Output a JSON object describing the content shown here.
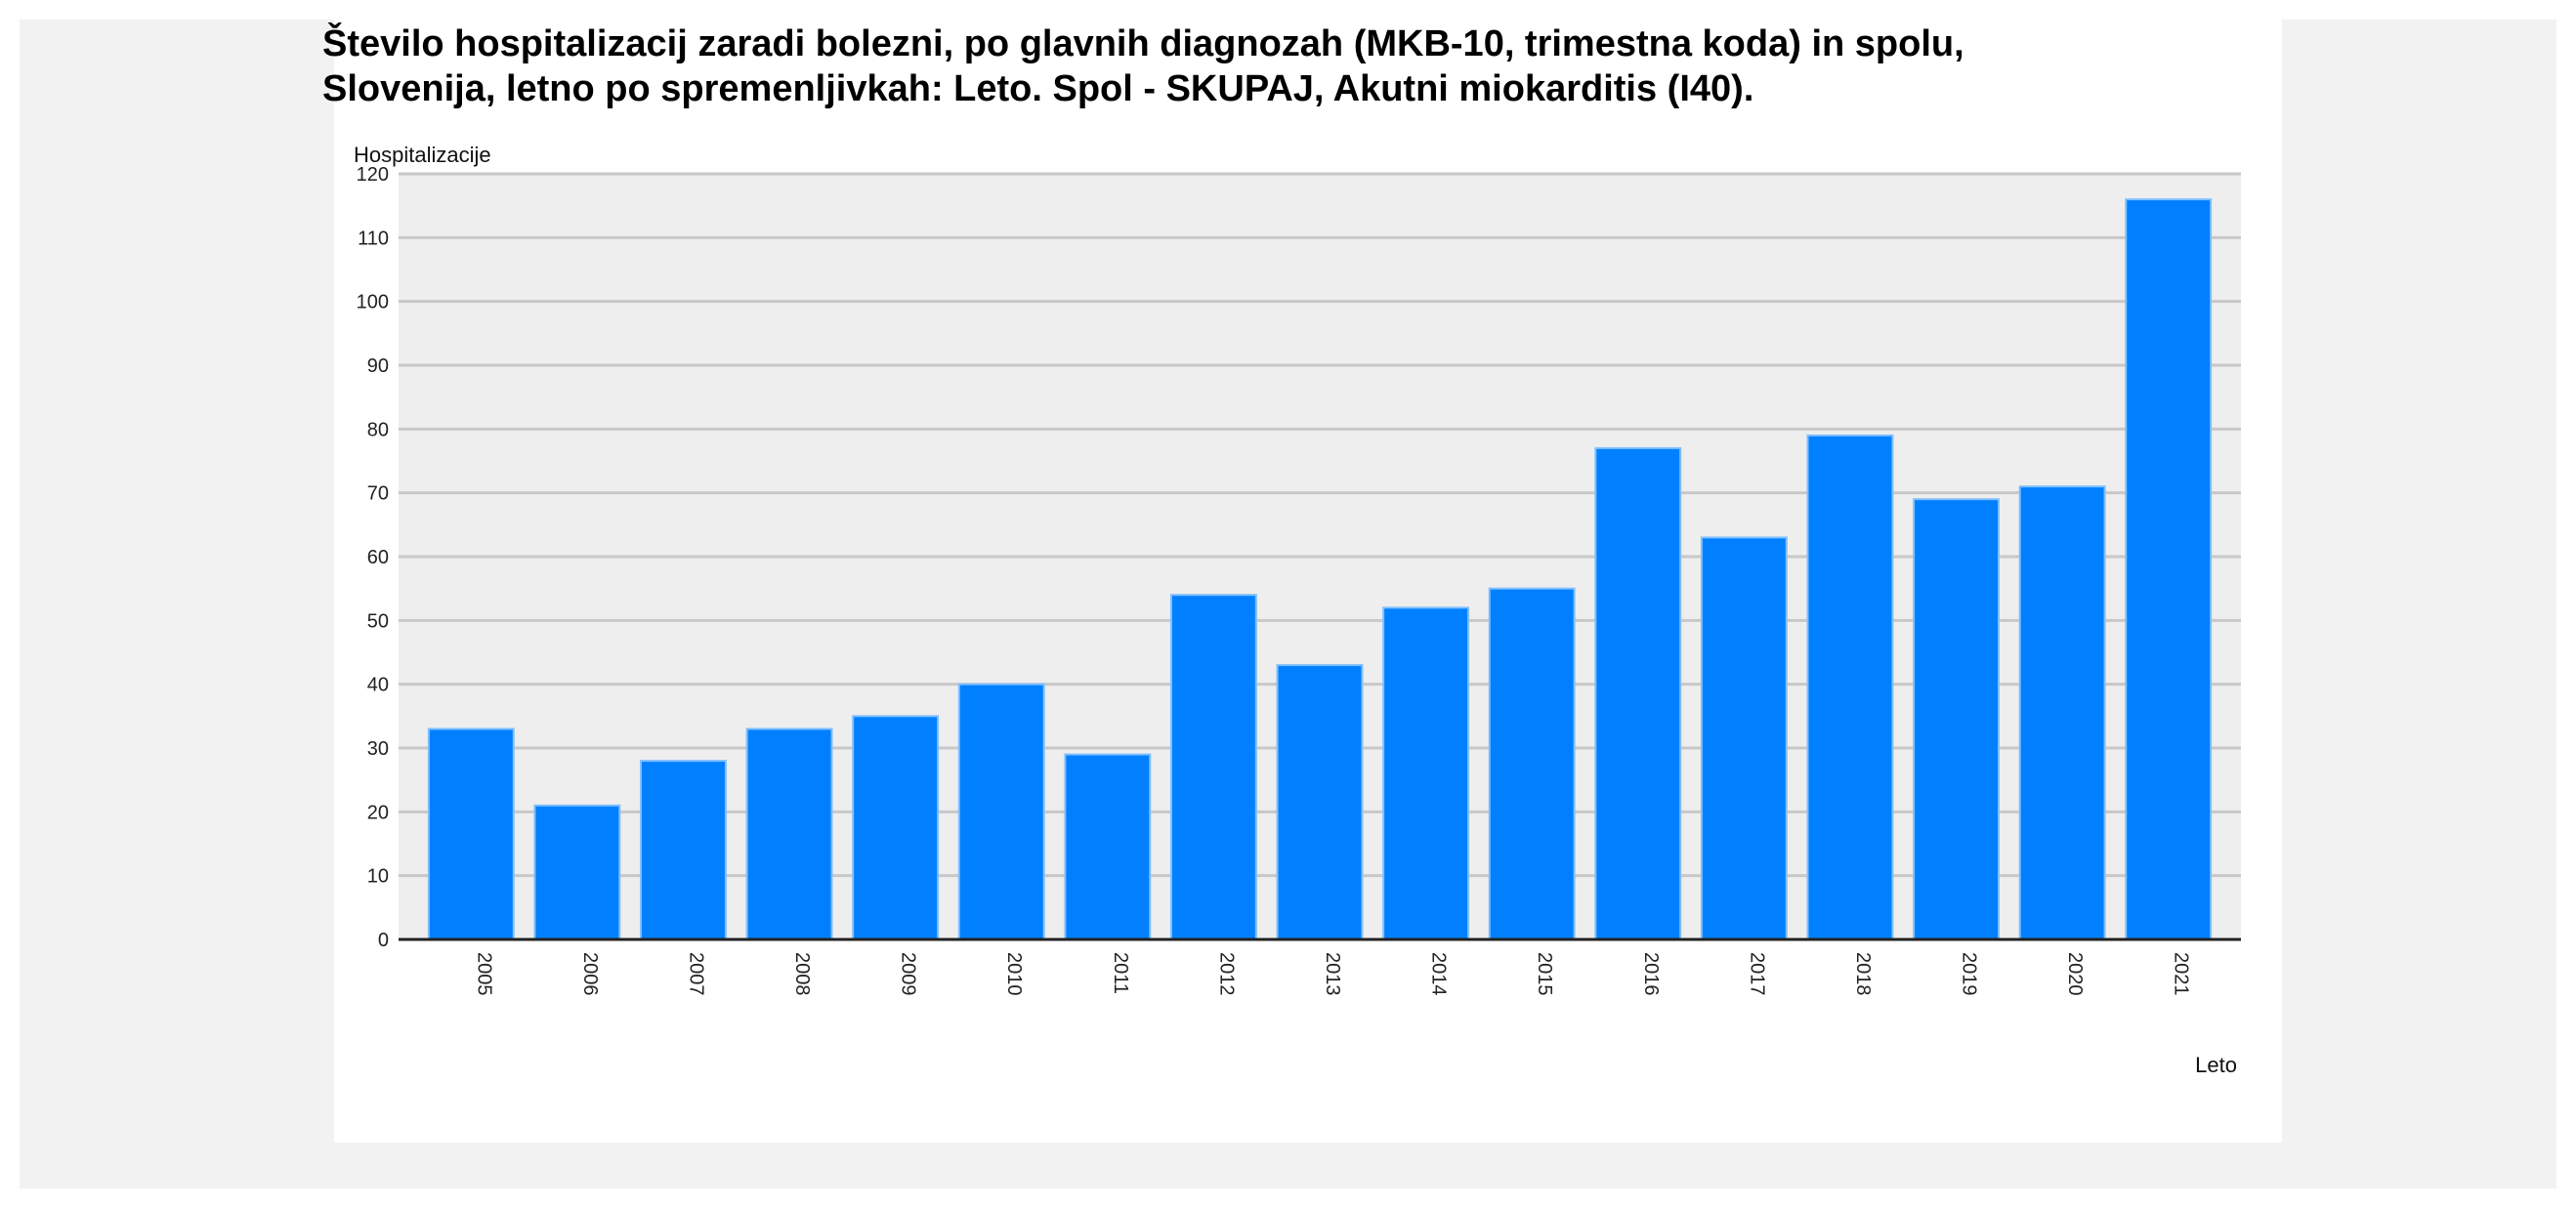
{
  "title_line1": "Število hospitalizacij zaradi bolezni, po glavnih diagnozah (MKB-10, trimestna koda) in spolu,",
  "title_line2": "Slovenija, letno po spremenljivkah: Leto. Spol - SKUPAJ, Akutni miokarditis (I40).",
  "colors": {
    "bar": "#0080ff",
    "plot_background": "#eeeeee",
    "gridline": "#c8c8c8",
    "frame": "#f2f2f2"
  },
  "chart_data": {
    "type": "bar",
    "title": "Število hospitalizacij zaradi bolezni, po glavnih diagnozah (MKB-10, trimestna koda) in spolu, Slovenija, letno po spremenljivkah: Leto. Spol - SKUPAJ, Akutni miokarditis (I40).",
    "ylabel": "Hospitalizacije",
    "xlabel": "Leto",
    "ylim": [
      0,
      120
    ],
    "yticks": [
      0,
      10,
      20,
      30,
      40,
      50,
      60,
      70,
      80,
      90,
      100,
      110,
      120
    ],
    "categories": [
      "2005",
      "2006",
      "2007",
      "2008",
      "2009",
      "2010",
      "2011",
      "2012",
      "2013",
      "2014",
      "2015",
      "2016",
      "2017",
      "2018",
      "2019",
      "2020",
      "2021"
    ],
    "values": [
      33,
      21,
      28,
      33,
      35,
      40,
      29,
      54,
      43,
      52,
      55,
      77,
      63,
      79,
      69,
      71,
      116
    ],
    "grid": true,
    "legend": "none"
  }
}
